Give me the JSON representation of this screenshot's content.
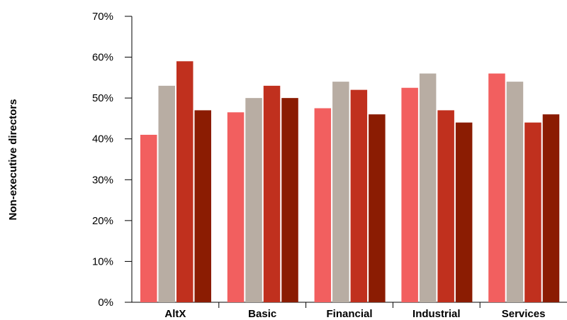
{
  "chart_data": {
    "type": "bar",
    "title": "",
    "xlabel": "",
    "ylabel": "Non-executive directors",
    "categories": [
      "AltX",
      "Basic",
      "Financial",
      "Industrial",
      "Services"
    ],
    "ylim": [
      0,
      70
    ],
    "yticks": [
      0,
      10,
      20,
      30,
      40,
      50,
      60,
      70
    ],
    "ytick_labels": [
      "0%",
      "10%",
      "20%",
      "30%",
      "40%",
      "50%",
      "60%",
      "70%"
    ],
    "grid": false,
    "legend": "none",
    "series": [
      {
        "color": "#f25f5f",
        "values": [
          41,
          46.5,
          47.5,
          52.5,
          56
        ]
      },
      {
        "color": "#b8ada3",
        "values": [
          53,
          50,
          54,
          56,
          54
        ]
      },
      {
        "color": "#c0301e",
        "values": [
          59,
          53,
          52,
          47,
          44
        ]
      },
      {
        "color": "#8b1c02",
        "values": [
          47,
          50,
          46,
          44,
          46
        ]
      }
    ]
  }
}
